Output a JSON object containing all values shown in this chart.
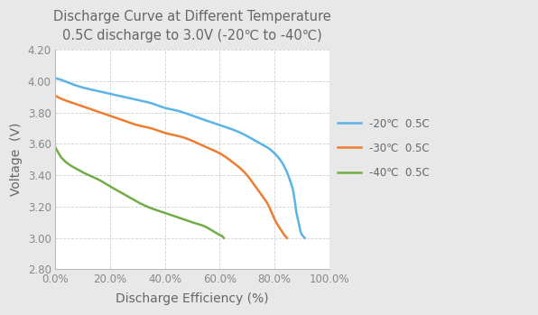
{
  "title_line1": "Discharge Curve at Different Temperature",
  "title_line2": "0.5C discharge to 3.0V (-20℃ to -40℃)",
  "xlabel": "Discharge Efficiency (%)",
  "ylabel": "Voltage  (V)",
  "xlim": [
    0.0,
    1.0
  ],
  "ylim": [
    2.8,
    4.2
  ],
  "yticks": [
    2.8,
    3.0,
    3.2,
    3.4,
    3.6,
    3.8,
    4.0,
    4.2
  ],
  "xticks": [
    0.0,
    0.2,
    0.4,
    0.6,
    0.8,
    1.0
  ],
  "background_color": "#e8e8e8",
  "plot_bg_color": "#ffffff",
  "grid_color": "#cccccc",
  "curves": [
    {
      "label": "-20℃  0.5C",
      "color": "#5ab4e5",
      "x": [
        0.0,
        0.02,
        0.05,
        0.1,
        0.15,
        0.2,
        0.25,
        0.3,
        0.35,
        0.4,
        0.45,
        0.5,
        0.55,
        0.6,
        0.65,
        0.7,
        0.75,
        0.78,
        0.8,
        0.82,
        0.84,
        0.86,
        0.87,
        0.875,
        0.88,
        0.885,
        0.89,
        0.895,
        0.9,
        0.905,
        0.91
      ],
      "y": [
        4.02,
        4.01,
        3.99,
        3.96,
        3.94,
        3.92,
        3.9,
        3.88,
        3.86,
        3.83,
        3.81,
        3.78,
        3.75,
        3.72,
        3.69,
        3.65,
        3.6,
        3.57,
        3.54,
        3.5,
        3.44,
        3.35,
        3.28,
        3.22,
        3.16,
        3.12,
        3.08,
        3.04,
        3.02,
        3.01,
        3.0
      ]
    },
    {
      "label": "-30℃  0.5C",
      "color": "#ed7d31",
      "x": [
        0.0,
        0.02,
        0.05,
        0.1,
        0.15,
        0.2,
        0.25,
        0.3,
        0.35,
        0.4,
        0.45,
        0.5,
        0.55,
        0.6,
        0.65,
        0.7,
        0.75,
        0.78,
        0.8,
        0.82,
        0.835,
        0.84,
        0.843,
        0.845
      ],
      "y": [
        3.91,
        3.89,
        3.87,
        3.84,
        3.81,
        3.78,
        3.75,
        3.72,
        3.7,
        3.67,
        3.65,
        3.62,
        3.58,
        3.54,
        3.48,
        3.4,
        3.28,
        3.2,
        3.12,
        3.06,
        3.02,
        3.01,
        3.005,
        3.0
      ]
    },
    {
      "label": "-40℃  0.5C",
      "color": "#70ad47",
      "x": [
        0.0,
        0.01,
        0.02,
        0.03,
        0.05,
        0.08,
        0.1,
        0.15,
        0.2,
        0.25,
        0.3,
        0.35,
        0.4,
        0.45,
        0.5,
        0.55,
        0.6,
        0.61,
        0.615
      ],
      "y": [
        3.58,
        3.55,
        3.52,
        3.5,
        3.47,
        3.44,
        3.42,
        3.38,
        3.33,
        3.28,
        3.23,
        3.19,
        3.16,
        3.13,
        3.1,
        3.07,
        3.02,
        3.01,
        3.0
      ]
    }
  ],
  "title_fontsize": 10.5,
  "label_fontsize": 10,
  "tick_fontsize": 8.5,
  "legend_fontsize": 8.5
}
